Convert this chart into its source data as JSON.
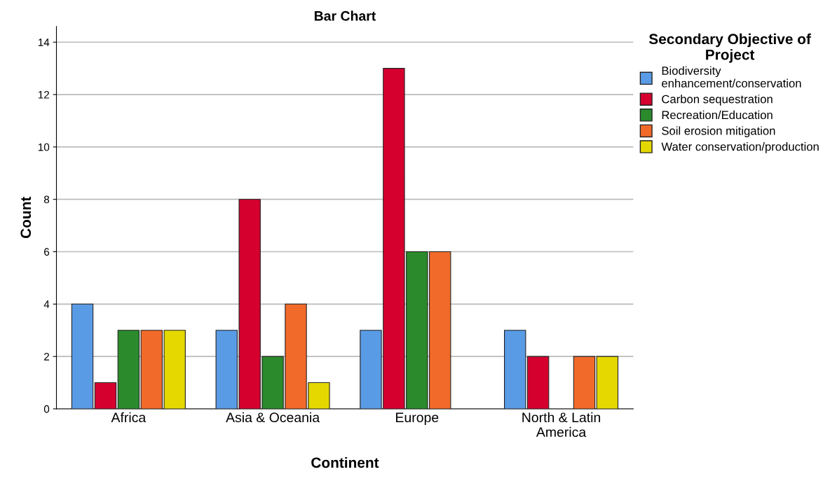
{
  "chart_data": {
    "type": "bar",
    "title": "Bar Chart",
    "xlabel": "Continent",
    "ylabel": "Count",
    "legend_title": "Secondary Objective of\nProject",
    "categories": [
      "Africa",
      "Asia & Oceania",
      "Europe",
      "North & Latin\nAmerica"
    ],
    "series": [
      {
        "name": "Biodiversity\nenhancement/conservation",
        "color": "#5a9be6",
        "values": [
          4,
          3,
          3,
          3
        ]
      },
      {
        "name": "Carbon sequestration",
        "color": "#d6002f",
        "values": [
          1,
          8,
          13,
          2
        ]
      },
      {
        "name": "Recreation/Education",
        "color": "#2b8a2b",
        "values": [
          3,
          2,
          6,
          null
        ]
      },
      {
        "name": "Soil erosion mitigation",
        "color": "#f26a2a",
        "values": [
          3,
          4,
          6,
          2
        ]
      },
      {
        "name": "Water conservation/production",
        "color": "#e5d800",
        "values": [
          3,
          1,
          null,
          2
        ]
      }
    ],
    "ylim": [
      0,
      14.6
    ],
    "yticks": [
      0,
      2,
      4,
      6,
      8,
      10,
      12,
      14
    ],
    "grid": "y",
    "legend": "top right"
  }
}
